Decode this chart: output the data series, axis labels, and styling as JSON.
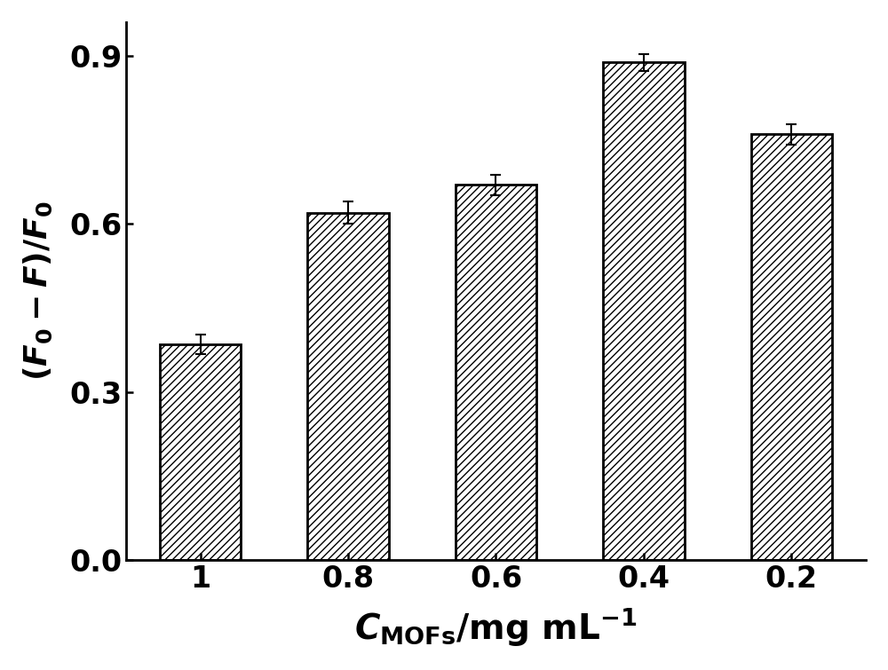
{
  "categories": [
    "1",
    "0.8",
    "0.6",
    "0.4",
    "0.2"
  ],
  "values": [
    0.385,
    0.62,
    0.67,
    0.888,
    0.76
  ],
  "errors": [
    0.018,
    0.02,
    0.018,
    0.015,
    0.018
  ],
  "bar_color": "#ffffff",
  "bar_edgecolor": "#000000",
  "hatch": "////",
  "ylabel": "$(F_0-F)/F_0$",
  "xlabel": "$\\mathit{C}_{\\rm MOFs}$/mg mL$^{-1}$",
  "ylim": [
    0.0,
    0.96
  ],
  "yticks": [
    0.0,
    0.3,
    0.6,
    0.9
  ],
  "ytick_labels": [
    "0.0",
    "0.3",
    "0.6",
    "0.9"
  ],
  "background_color": "#ffffff",
  "bar_width": 0.55,
  "spine_linewidth": 2.0,
  "tick_fontsize": 24,
  "ylabel_fontsize": 26,
  "xlabel_fontsize": 28,
  "capsize": 4,
  "error_linewidth": 1.5
}
